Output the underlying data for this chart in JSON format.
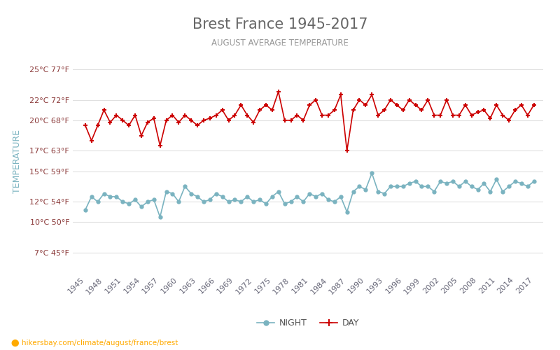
{
  "title": "Brest France 1945-2017",
  "subtitle": "AUGUST AVERAGE TEMPERATURE",
  "ylabel": "TEMPERATURE",
  "footer": "hikersbay.com/climate/august/france/brest",
  "years": [
    1945,
    1946,
    1947,
    1948,
    1949,
    1950,
    1951,
    1952,
    1953,
    1954,
    1955,
    1956,
    1957,
    1958,
    1959,
    1960,
    1961,
    1962,
    1963,
    1964,
    1965,
    1966,
    1967,
    1968,
    1969,
    1970,
    1971,
    1972,
    1973,
    1974,
    1975,
    1976,
    1977,
    1978,
    1979,
    1980,
    1981,
    1982,
    1983,
    1984,
    1985,
    1986,
    1987,
    1988,
    1989,
    1990,
    1991,
    1992,
    1993,
    1994,
    1995,
    1996,
    1997,
    1998,
    1999,
    2000,
    2001,
    2002,
    2003,
    2004,
    2005,
    2006,
    2007,
    2008,
    2009,
    2010,
    2011,
    2012,
    2013,
    2014,
    2015,
    2016,
    2017
  ],
  "day_temps": [
    19.5,
    18.0,
    19.5,
    21.0,
    19.8,
    20.5,
    20.0,
    19.5,
    20.5,
    18.5,
    19.8,
    20.2,
    17.5,
    20.0,
    20.5,
    19.8,
    20.5,
    20.0,
    19.5,
    20.0,
    20.2,
    20.5,
    21.0,
    20.0,
    20.5,
    21.5,
    20.5,
    19.8,
    21.0,
    21.5,
    21.0,
    22.8,
    20.0,
    20.0,
    20.5,
    20.0,
    21.5,
    22.0,
    20.5,
    20.5,
    21.0,
    22.5,
    17.0,
    21.0,
    22.0,
    21.5,
    22.5,
    20.5,
    21.0,
    22.0,
    21.5,
    21.0,
    22.0,
    21.5,
    21.0,
    22.0,
    20.5,
    20.5,
    22.0,
    20.5,
    20.5,
    21.5,
    20.5,
    20.8,
    21.0,
    20.2,
    21.5,
    20.5,
    20.0,
    21.0,
    21.5,
    20.5,
    21.5
  ],
  "night_temps": [
    11.2,
    12.5,
    12.0,
    12.8,
    12.5,
    12.5,
    12.0,
    11.8,
    12.2,
    11.5,
    12.0,
    12.2,
    10.5,
    13.0,
    12.8,
    12.0,
    13.5,
    12.8,
    12.5,
    12.0,
    12.2,
    12.8,
    12.5,
    12.0,
    12.2,
    12.0,
    12.5,
    12.0,
    12.2,
    11.8,
    12.5,
    13.0,
    11.8,
    12.0,
    12.5,
    12.0,
    12.8,
    12.5,
    12.8,
    12.2,
    12.0,
    12.5,
    11.0,
    13.0,
    13.5,
    13.2,
    14.8,
    13.0,
    12.8,
    13.5,
    13.5,
    13.5,
    13.8,
    14.0,
    13.5,
    13.5,
    13.0,
    14.0,
    13.8,
    14.0,
    13.5,
    14.0,
    13.5,
    13.2,
    13.8,
    13.0,
    14.2,
    13.0,
    13.5,
    14.0,
    13.8,
    13.5,
    14.0
  ],
  "day_color": "#cc0000",
  "night_color": "#7ab3c0",
  "marker_day": "+",
  "marker_night": "o",
  "yticks_c": [
    7,
    10,
    12,
    15,
    17,
    20,
    22,
    25
  ],
  "yticks_f": [
    45,
    50,
    54,
    59,
    63,
    68,
    72,
    77
  ],
  "background_color": "#ffffff",
  "grid_color": "#e0e0e0",
  "title_color": "#666666",
  "subtitle_color": "#888888",
  "ylabel_color": "#7ab3c0",
  "tick_color": "#8b3a3a"
}
